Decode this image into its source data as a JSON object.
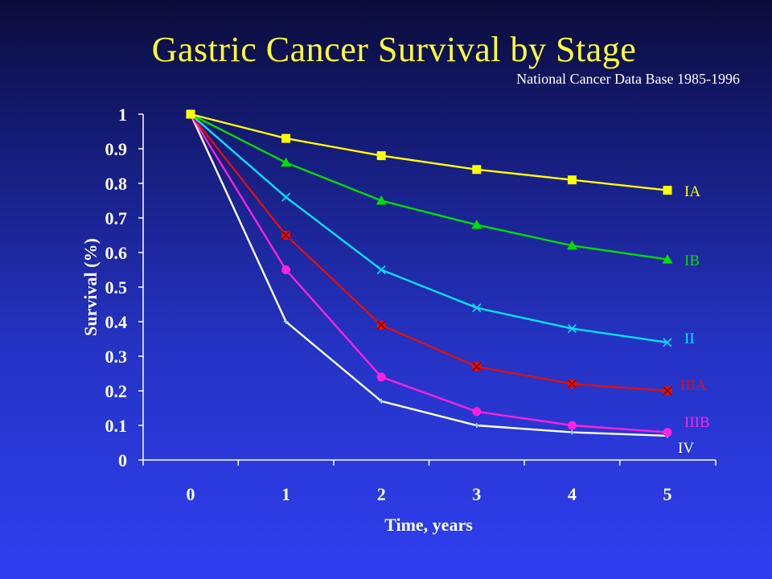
{
  "slide": {
    "title": "Gastric Cancer Survival by Stage",
    "subtitle": "National Cancer Data Base 1985-1996"
  },
  "chart_data": {
    "type": "line",
    "xlabel": "Time, years",
    "ylabel": "Survival (%)",
    "x": [
      0,
      1,
      2,
      3,
      4,
      5
    ],
    "x_tick_labels": [
      "0",
      "1",
      "2",
      "3",
      "4",
      "5"
    ],
    "y_ticks": [
      0,
      0.1,
      0.2,
      0.3,
      0.4,
      0.5,
      0.6,
      0.7,
      0.8,
      0.9,
      1
    ],
    "y_tick_labels": [
      "0",
      "0.1",
      "0.2",
      "0.3",
      "0.4",
      "0.5",
      "0.6",
      "0.7",
      "0.8",
      "0.9",
      "1"
    ],
    "xlim": [
      0,
      5
    ],
    "ylim": [
      0,
      1
    ],
    "grid": false,
    "legend": "inline-right",
    "series": [
      {
        "name": "IA",
        "color": "#ffff00",
        "marker": "square",
        "values": [
          1,
          0.93,
          0.88,
          0.84,
          0.81,
          0.78
        ]
      },
      {
        "name": "IB",
        "color": "#00dd00",
        "marker": "triangle",
        "values": [
          1,
          0.86,
          0.75,
          0.68,
          0.62,
          0.58
        ]
      },
      {
        "name": "II",
        "color": "#00e5ff",
        "marker": "x",
        "values": [
          1,
          0.76,
          0.55,
          0.44,
          0.38,
          0.34
        ]
      },
      {
        "name": "IIIA",
        "color": "#dd1010",
        "marker": "boxed-x",
        "values": [
          1,
          0.65,
          0.39,
          0.27,
          0.22,
          0.2
        ]
      },
      {
        "name": "IIIB",
        "color": "#ff22dd",
        "marker": "circle",
        "values": [
          1,
          0.55,
          0.24,
          0.14,
          0.1,
          0.08
        ]
      },
      {
        "name": "IV",
        "color": "#ffffff",
        "marker": "plus",
        "values": [
          1,
          0.4,
          0.17,
          0.1,
          0.08,
          0.07
        ]
      }
    ]
  }
}
